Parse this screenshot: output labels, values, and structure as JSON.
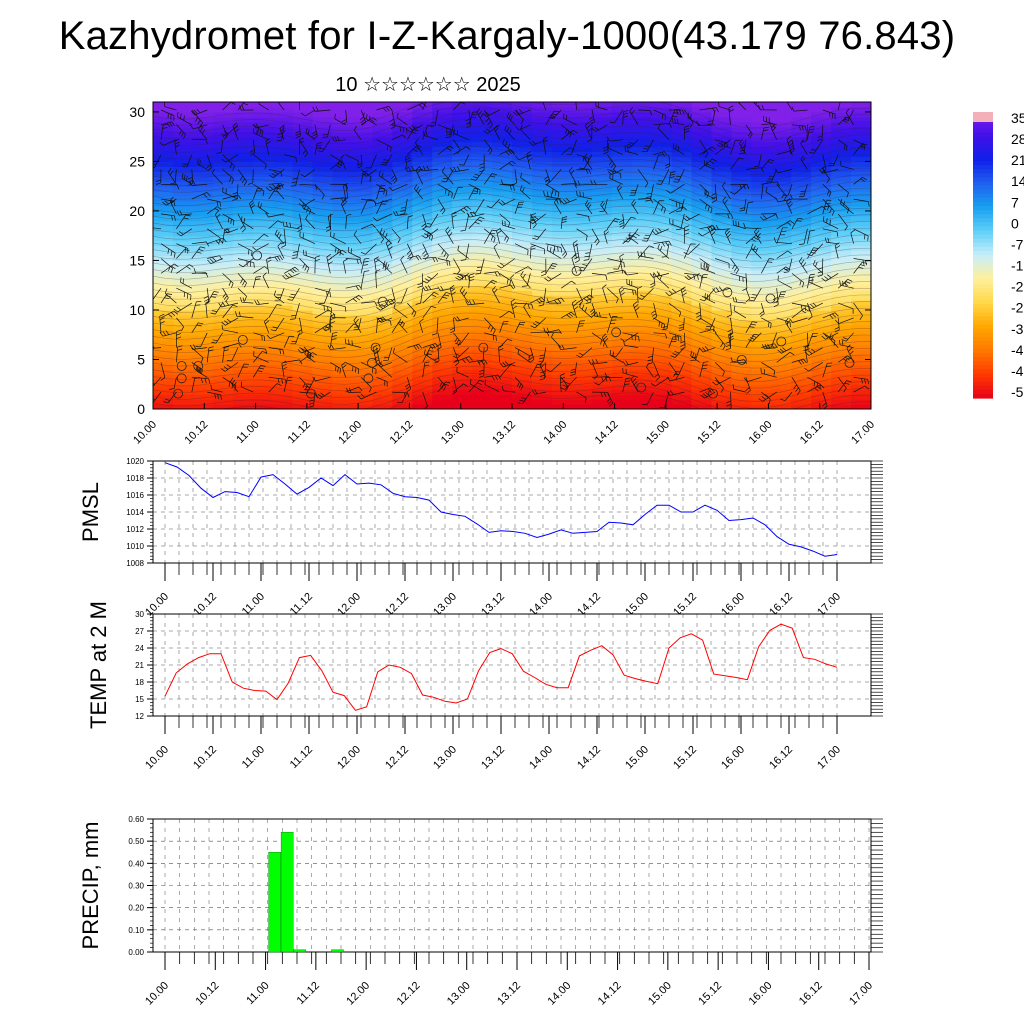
{
  "header": {
    "title": "Kazhydromet for I-Z-Kargaly-1000(43.179 76.843)",
    "subtitle": "10 ☆☆☆☆☆☆ 2025"
  },
  "chart_data": [
    {
      "type": "heatmap",
      "name": "vertical temperature cross-section with wind barbs",
      "x_tick_labels": [
        "10.00",
        "10.12",
        "11.00",
        "11.12",
        "12.00",
        "12.12",
        "13.00",
        "13.12",
        "14.00",
        "14.12",
        "15.00",
        "15.12",
        "16.00",
        "16.12",
        "17.00"
      ],
      "y_tick_labels": [
        "0",
        "5",
        "10",
        "15",
        "20",
        "25",
        "30"
      ],
      "ylim": [
        0,
        31
      ],
      "colorbar_labels": [
        "35",
        "28",
        "21",
        "14",
        "7",
        "0",
        "-7",
        "-1",
        "-2",
        "-2",
        "-3",
        "-4",
        "-4",
        "-5"
      ],
      "colormap": [
        "#e8001a",
        "#ff3a00",
        "#ff7800",
        "#ffa800",
        "#ffd84a",
        "#fff09c",
        "#c8eef8",
        "#5fd0f8",
        "#18a0f0",
        "#2060f0",
        "#1020e8",
        "#4010e8",
        "#8020e8"
      ]
    },
    {
      "type": "line",
      "ylabel": "PMSL",
      "y_tick_labels": [
        "1020",
        "1018",
        "1016",
        "1014",
        "1012",
        "1010",
        "1008"
      ],
      "ylim": [
        1008,
        1020
      ],
      "x_tick_labels": [
        "10.00",
        "10.12",
        "11.00",
        "11.12",
        "12.00",
        "12.12",
        "13.00",
        "13.12",
        "14.00",
        "14.12",
        "15.00",
        "15.12",
        "16.00",
        "16.12",
        "17.00"
      ],
      "color": "#0000ff",
      "values": [
        1019.8,
        1019.3,
        1018.3,
        1016.8,
        1015.7,
        1016.4,
        1016.3,
        1015.8,
        1018.1,
        1018.4,
        1017.3,
        1016.1,
        1016.9,
        1018.0,
        1017.1,
        1018.4,
        1017.3,
        1017.4,
        1017.2,
        1016.2,
        1015.8,
        1015.7,
        1015.4,
        1014.0,
        1013.7,
        1013.5,
        1012.6,
        1011.6,
        1011.8,
        1011.7,
        1011.5,
        1011.0,
        1011.4,
        1011.9,
        1011.5,
        1011.6,
        1011.7,
        1012.8,
        1012.7,
        1012.5,
        1013.7,
        1014.8,
        1014.8,
        1014.0,
        1014.0,
        1014.8,
        1014.2,
        1013.0,
        1013.1,
        1013.3,
        1012.5,
        1011.1,
        1010.2,
        1009.9,
        1009.4,
        1008.8,
        1009.0
      ]
    },
    {
      "type": "line",
      "ylabel": "TEMP at 2 M",
      "y_tick_labels": [
        "30",
        "27",
        "24",
        "21",
        "18",
        "15",
        "12"
      ],
      "ylim": [
        12,
        30
      ],
      "x_tick_labels": [
        "10.00",
        "10.12",
        "11.00",
        "11.12",
        "12.00",
        "12.12",
        "13.00",
        "13.12",
        "14.00",
        "14.12",
        "15.00",
        "15.12",
        "16.00",
        "16.12",
        "17.00"
      ],
      "color": "#ff0000",
      "values": [
        15.5,
        19.6,
        21.2,
        22.3,
        23.0,
        23.0,
        18.0,
        16.9,
        16.5,
        16.4,
        14.9,
        17.8,
        22.3,
        22.7,
        20.0,
        16.2,
        15.6,
        13.0,
        13.6,
        19.8,
        21.0,
        20.6,
        19.5,
        15.7,
        15.3,
        14.6,
        14.3,
        15.0,
        20.0,
        23.2,
        23.9,
        23.0,
        19.9,
        18.8,
        17.6,
        17.0,
        17.0,
        22.6,
        23.6,
        24.4,
        22.8,
        19.2,
        18.6,
        18.1,
        17.7,
        24.0,
        25.8,
        26.5,
        25.4,
        19.4,
        19.1,
        18.8,
        18.4,
        24.2,
        27.1,
        28.2,
        27.5,
        22.3,
        22.0,
        21.2,
        20.6
      ]
    },
    {
      "type": "bar",
      "ylabel": "PRECIP, mm",
      "y_tick_labels": [
        "0.60",
        "0.50",
        "0.40",
        "0.30",
        "0.20",
        "0.10",
        "0.00"
      ],
      "ylim": [
        0,
        0.6
      ],
      "x_tick_labels": [
        "10.00",
        "10.12",
        "11.00",
        "11.12",
        "12.00",
        "12.12",
        "13.00",
        "13.12",
        "14.00",
        "14.12",
        "15.00",
        "15.12",
        "16.00",
        "16.12",
        "17.00"
      ],
      "color": "#00ff00",
      "bars": [
        {
          "x": 8,
          "value": 0.45
        },
        {
          "x": 9,
          "value": 0.54
        },
        {
          "x": 10,
          "value": 0.01
        },
        {
          "x": 13,
          "value": 0.01
        }
      ]
    }
  ]
}
